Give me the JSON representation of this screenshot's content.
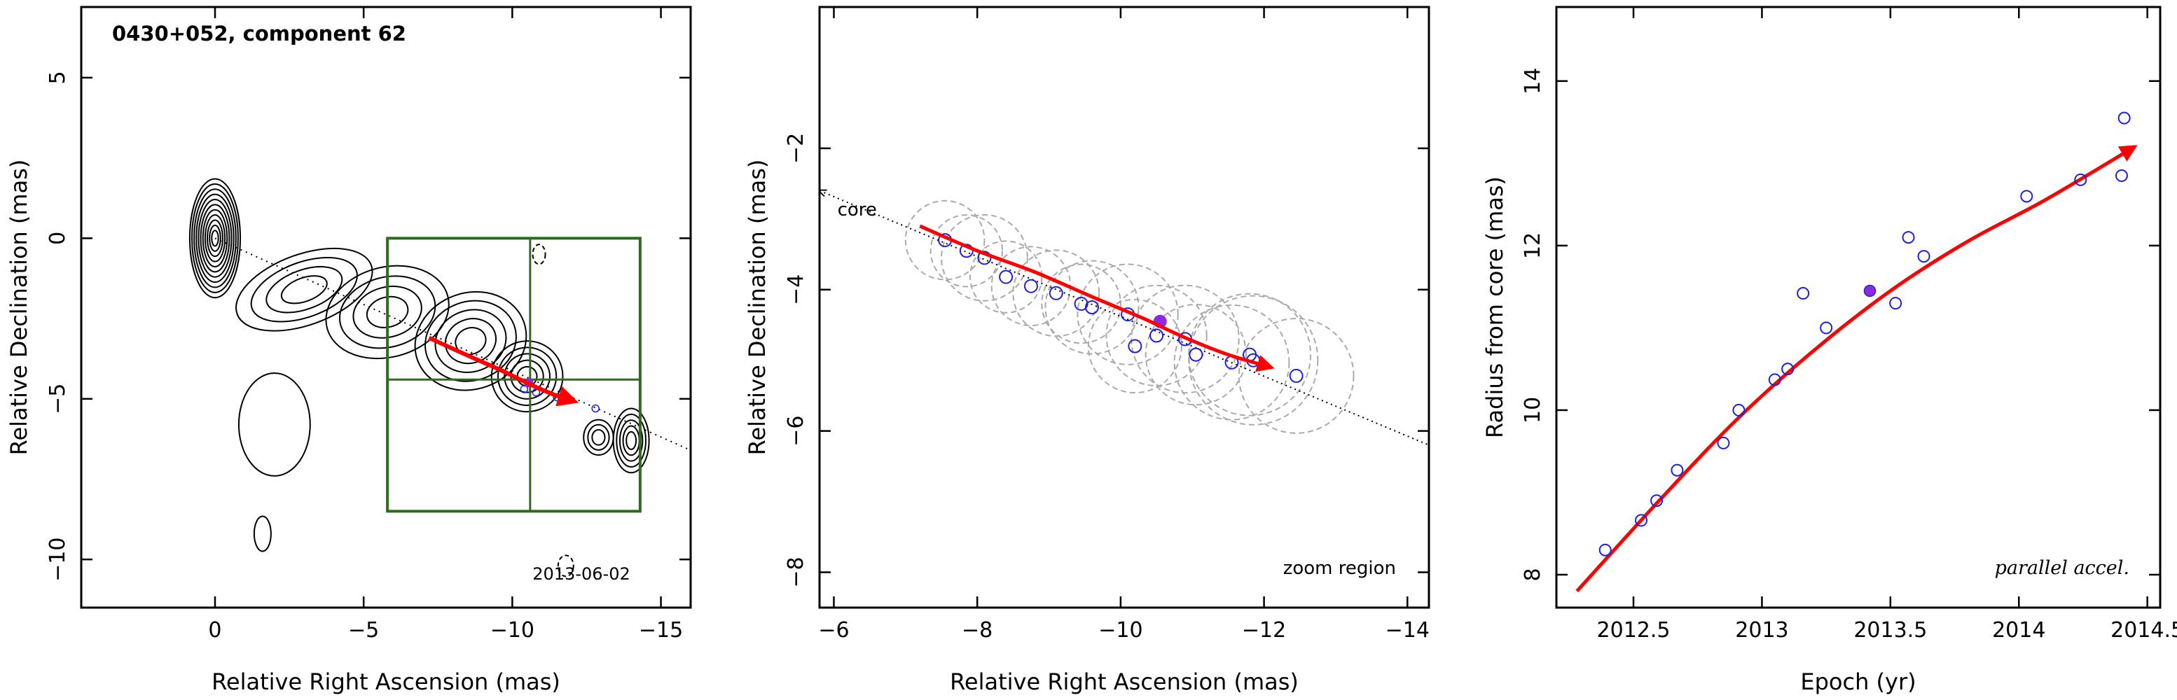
{
  "colors": {
    "trajectory": "#ff0000",
    "points": "#1f1fe0",
    "highlight": "#8a2be2",
    "box": "#2e6b1e",
    "circles": "#aaaaaa",
    "contours": "#000000"
  },
  "chart_data": [
    {
      "type": "contour",
      "title": "0430+052, component 62",
      "annotation": "2013-06-02",
      "xlabel": "Relative Right Ascension (mas)",
      "ylabel": "Relative Declination (mas)",
      "xlim": [
        4.5,
        -16
      ],
      "ylim": [
        -11.5,
        7.2
      ],
      "xticks": [
        0,
        -5,
        -10,
        -15
      ],
      "yticks": [
        5,
        0,
        -5,
        -10
      ],
      "core": [
        0,
        0
      ],
      "jet_axis": [
        [
          0,
          0
        ],
        [
          -16,
          -6.6
        ]
      ],
      "zoom_box": {
        "x": [
          -5.8,
          -14.3
        ],
        "y": [
          0,
          -8.5
        ],
        "cross_x": -10.6,
        "cross_y": -4.4
      },
      "trajectory": [
        [
          -7.2,
          -3.1
        ],
        [
          -8.5,
          -3.65
        ],
        [
          -9.6,
          -4.1
        ],
        [
          -10.6,
          -4.55
        ],
        [
          -11.4,
          -4.87
        ],
        [
          -12.1,
          -5.08
        ]
      ],
      "points": [
        [
          -10.4,
          -4.7
        ],
        [
          -10.8,
          -4.8
        ],
        [
          -11.5,
          -4.95
        ],
        [
          -11.9,
          -5.0
        ],
        [
          -12.8,
          -5.3
        ]
      ],
      "highlight_point": [
        -10.55,
        -4.5
      ]
    },
    {
      "type": "scatter",
      "annotation": "zoom region",
      "core_label": "core",
      "xlabel": "Relative Right Ascension (mas)",
      "ylabel": "Relative Declination (mas)",
      "xlim": [
        -5.8,
        -14.3
      ],
      "ylim": [
        -8.5,
        0
      ],
      "xticks": [
        -6,
        -8,
        -10,
        -12,
        -14
      ],
      "yticks": [
        -2,
        -4,
        -6,
        -8
      ],
      "core_axis": [
        [
          -5.8,
          -2.6
        ],
        [
          -14.3,
          -6.2
        ]
      ],
      "trajectory": [
        [
          -7.2,
          -3.1
        ],
        [
          -8.0,
          -3.45
        ],
        [
          -8.8,
          -3.75
        ],
        [
          -9.6,
          -4.1
        ],
        [
          -10.3,
          -4.4
        ],
        [
          -10.9,
          -4.68
        ],
        [
          -11.5,
          -4.92
        ],
        [
          -12.1,
          -5.1
        ]
      ],
      "points": [
        [
          -7.55,
          -3.3
        ],
        [
          -7.85,
          -3.45
        ],
        [
          -8.1,
          -3.55
        ],
        [
          -8.4,
          -3.82
        ],
        [
          -8.75,
          -3.95
        ],
        [
          -9.1,
          -4.05
        ],
        [
          -9.45,
          -4.2
        ],
        [
          -9.6,
          -4.25
        ],
        [
          -10.1,
          -4.35
        ],
        [
          -10.2,
          -4.8
        ],
        [
          -10.5,
          -4.65
        ],
        [
          -10.9,
          -4.7
        ],
        [
          -11.05,
          -4.92
        ],
        [
          -11.55,
          -5.03
        ],
        [
          -11.8,
          -4.92
        ],
        [
          -11.85,
          -5.0
        ],
        [
          -12.45,
          -5.22
        ]
      ],
      "highlight_point": [
        -10.55,
        -4.45
      ],
      "circles": [
        [
          -7.55,
          -3.3,
          0.55
        ],
        [
          -7.85,
          -3.45,
          0.5
        ],
        [
          -8.1,
          -3.55,
          0.6
        ],
        [
          -8.4,
          -3.82,
          0.5
        ],
        [
          -8.75,
          -3.95,
          0.55
        ],
        [
          -9.1,
          -4.05,
          0.6
        ],
        [
          -9.45,
          -4.2,
          0.55
        ],
        [
          -9.6,
          -4.25,
          0.65
        ],
        [
          -10.1,
          -4.35,
          0.7
        ],
        [
          -10.2,
          -4.8,
          0.65
        ],
        [
          -10.5,
          -4.65,
          0.7
        ],
        [
          -10.9,
          -4.7,
          0.75
        ],
        [
          -11.05,
          -4.92,
          0.7
        ],
        [
          -11.55,
          -5.03,
          0.8
        ],
        [
          -11.8,
          -4.92,
          0.85
        ],
        [
          -11.85,
          -5.0,
          0.9
        ],
        [
          -12.45,
          -5.22,
          0.8
        ]
      ]
    },
    {
      "type": "scatter",
      "annotation": "parallel accel.",
      "xlabel": "Epoch (yr)",
      "ylabel": "Radius from core (mas)",
      "xlim": [
        2012.2,
        2014.55
      ],
      "ylim": [
        7.6,
        14.9
      ],
      "xticks": [
        2012.5,
        2013,
        2013.5,
        2014,
        2014.5
      ],
      "xtick_labels": [
        "2012.5",
        "2013",
        "2013.5",
        "2014",
        "2014.5"
      ],
      "yticks": [
        8,
        10,
        12,
        14
      ],
      "points": [
        [
          2012.39,
          8.3
        ],
        [
          2012.53,
          8.66
        ],
        [
          2012.59,
          8.9
        ],
        [
          2012.67,
          9.27
        ],
        [
          2012.85,
          9.6
        ],
        [
          2012.91,
          10.0
        ],
        [
          2013.05,
          10.37
        ],
        [
          2013.1,
          10.5
        ],
        [
          2013.16,
          11.42
        ],
        [
          2013.25,
          11.0
        ],
        [
          2013.52,
          11.3
        ],
        [
          2013.57,
          12.1
        ],
        [
          2013.63,
          11.87
        ],
        [
          2014.03,
          12.6
        ],
        [
          2014.24,
          12.8
        ],
        [
          2014.4,
          12.85
        ],
        [
          2014.41,
          13.55
        ]
      ],
      "highlight_point": [
        2013.42,
        11.45
      ],
      "fit": [
        [
          2012.28,
          7.8
        ],
        [
          2012.6,
          8.9
        ],
        [
          2012.9,
          9.88
        ],
        [
          2013.2,
          10.72
        ],
        [
          2013.5,
          11.45
        ],
        [
          2013.8,
          12.05
        ],
        [
          2014.1,
          12.55
        ],
        [
          2014.45,
          13.2
        ]
      ]
    }
  ]
}
